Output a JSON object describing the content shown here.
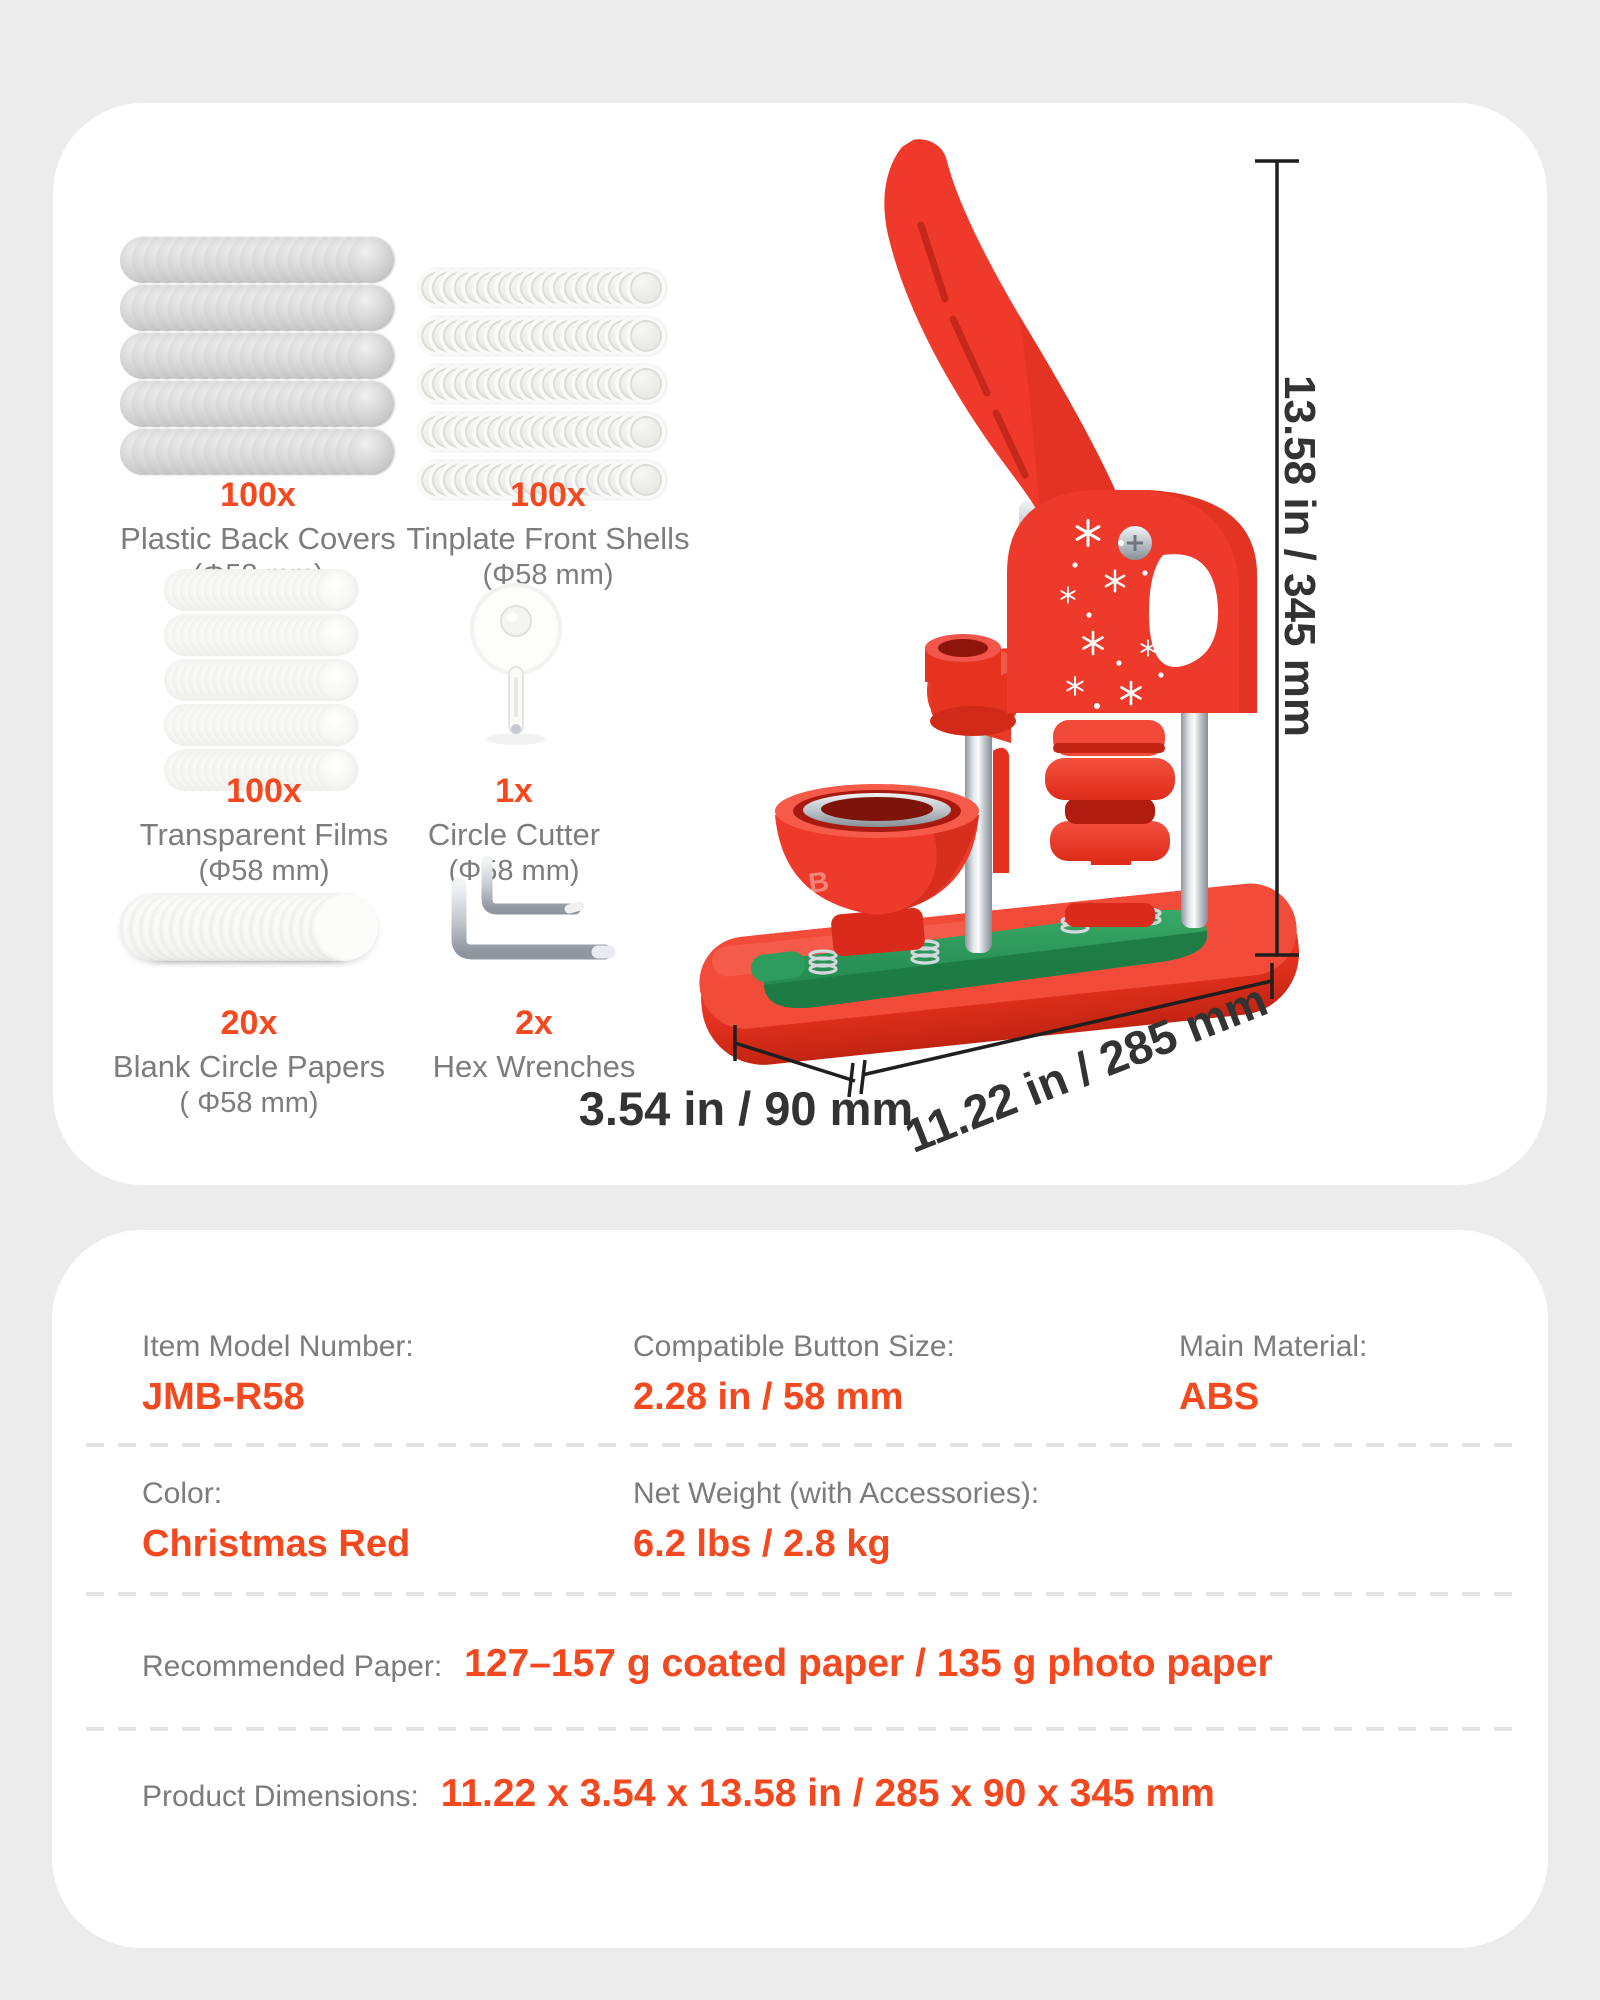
{
  "colors": {
    "accent": "#F4481F",
    "label_gray": "#7D7D7D",
    "dimension_text": "#333333",
    "machine_red": "#EF392B",
    "base_green": "#2E9C5C",
    "page_background": "#ECECEC",
    "card_background": "#FFFFFF"
  },
  "kit": {
    "items": [
      {
        "qty": "100x",
        "name": "Plastic Back Covers",
        "size": "(Φ58 mm)"
      },
      {
        "qty": "100x",
        "name": "Tinplate Front Shells",
        "size": "(Φ58 mm)"
      },
      {
        "qty": "100x",
        "name": "Transparent Films",
        "size": "(Φ58 mm)"
      },
      {
        "qty": "1x",
        "name": "Circle Cutter",
        "size": "(Φ58 mm)"
      },
      {
        "qty": "20x",
        "name": "Blank Circle Papers",
        "size": "( Φ58 mm)"
      },
      {
        "qty": "2x",
        "name": "Hex Wrenches",
        "size": ""
      }
    ]
  },
  "machine": {
    "bowl_letter": "B",
    "dimensions": {
      "height_label": "13.58 in / 345 mm",
      "width_label": "11.22 in / 285 mm",
      "depth_label": "3.54 in / 90 mm"
    }
  },
  "specs": {
    "rows": [
      {
        "cells": [
          {
            "label": "Item Model Number:",
            "value": "JMB-R58"
          },
          {
            "label": "Compatible Button Size:",
            "value": "2.28 in / 58 mm"
          },
          {
            "label": "Main Material:",
            "value": "ABS"
          }
        ]
      },
      {
        "cells": [
          {
            "label": "Color:",
            "value": "Christmas Red"
          },
          {
            "label": "Net Weight (with Accessories):",
            "value": "6.2 lbs / 2.8 kg"
          }
        ]
      },
      {
        "cells": [
          {
            "label": "Recommended Paper:",
            "value": "127–157 g coated paper / 135 g photo paper"
          }
        ]
      },
      {
        "cells": [
          {
            "label": "Product Dimensions:",
            "value": "11.22 x 3.54 x 13.58 in / 285 x 90 x 345 mm"
          }
        ]
      }
    ]
  }
}
